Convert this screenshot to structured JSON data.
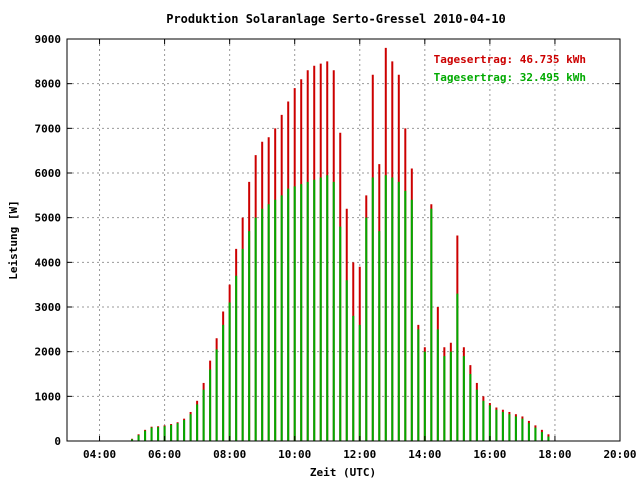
{
  "chart_data": {
    "type": "bar",
    "title": "Produktion Solaranlage Serto-Gressel 2010-04-10",
    "xlabel": "Zeit (UTC)",
    "ylabel": "Leistung [W]",
    "xlim": [
      3.0,
      20.0
    ],
    "ylim": [
      0,
      9000
    ],
    "x_ticks": [
      "04:00",
      "06:00",
      "08:00",
      "10:00",
      "12:00",
      "14:00",
      "16:00",
      "18:00",
      "20:00"
    ],
    "y_ticks": [
      "0",
      "1000",
      "2000",
      "3000",
      "4000",
      "5000",
      "6000",
      "7000",
      "8000",
      "9000"
    ],
    "grid": true,
    "legend_placement": "top-right",
    "annotations": [
      {
        "text": "Tagesertrag: 46.735 kWh",
        "color": "#cc0000"
      },
      {
        "text": "Tagesertrag: 32.495 kWh",
        "color": "#00aa00"
      }
    ],
    "series": [
      {
        "color": "#cc0000",
        "x": [
          5.0,
          5.2,
          5.4,
          5.6,
          5.8,
          6.0,
          6.2,
          6.4,
          6.6,
          6.8,
          7.0,
          7.2,
          7.4,
          7.6,
          7.8,
          8.0,
          8.2,
          8.4,
          8.6,
          8.8,
          9.0,
          9.2,
          9.4,
          9.6,
          9.8,
          10.0,
          10.2,
          10.4,
          10.6,
          10.8,
          11.0,
          11.2,
          11.4,
          11.6,
          11.8,
          12.0,
          12.2,
          12.4,
          12.6,
          12.8,
          13.0,
          13.2,
          13.4,
          13.6,
          13.8,
          14.0,
          14.2,
          14.4,
          14.6,
          14.8,
          15.0,
          15.2,
          15.4,
          15.6,
          15.8,
          16.0,
          16.2,
          16.4,
          16.6,
          16.8,
          17.0,
          17.2,
          17.4,
          17.6,
          17.8
        ],
        "values": [
          50,
          150,
          250,
          320,
          330,
          350,
          380,
          420,
          500,
          650,
          900,
          1300,
          1800,
          2300,
          2900,
          3500,
          4300,
          5000,
          5800,
          6400,
          6700,
          6800,
          7000,
          7300,
          7600,
          7900,
          8100,
          8300,
          8400,
          8450,
          8500,
          8300,
          6900,
          5200,
          4000,
          3900,
          5500,
          8200,
          6200,
          8800,
          8500,
          8200,
          7000,
          6100,
          2600,
          2100,
          5300,
          3000,
          2100,
          2200,
          4600,
          2100,
          1700,
          1300,
          1000,
          850,
          750,
          700,
          650,
          600,
          550,
          450,
          350,
          250,
          150
        ]
      },
      {
        "color": "#00aa00",
        "x": [
          5.0,
          5.2,
          5.4,
          5.6,
          5.8,
          6.0,
          6.2,
          6.4,
          6.6,
          6.8,
          7.0,
          7.2,
          7.4,
          7.6,
          7.8,
          8.0,
          8.2,
          8.4,
          8.6,
          8.8,
          9.0,
          9.2,
          9.4,
          9.6,
          9.8,
          10.0,
          10.2,
          10.4,
          10.6,
          10.8,
          11.0,
          11.2,
          11.4,
          11.6,
          11.8,
          12.0,
          12.2,
          12.4,
          12.6,
          12.8,
          13.0,
          13.2,
          13.4,
          13.6,
          13.8,
          14.0,
          14.2,
          14.4,
          14.6,
          14.8,
          15.0,
          15.2,
          15.4,
          15.6,
          15.8,
          16.0,
          16.2,
          16.4,
          16.6,
          16.8,
          17.0,
          17.2,
          17.4,
          17.6,
          17.8
        ],
        "values": [
          40,
          130,
          230,
          300,
          310,
          330,
          360,
          400,
          470,
          600,
          820,
          1150,
          1600,
          2050,
          2600,
          3100,
          3700,
          4300,
          4700,
          5000,
          5200,
          5300,
          5400,
          5500,
          5650,
          5700,
          5750,
          5800,
          5850,
          5900,
          5950,
          5800,
          4800,
          3600,
          2800,
          2600,
          5000,
          5900,
          4700,
          5950,
          5900,
          5800,
          5600,
          5400,
          2500,
          2000,
          5200,
          2500,
          1900,
          2000,
          3300,
          1900,
          1500,
          1150,
          900,
          800,
          700,
          650,
          600,
          550,
          500,
          400,
          300,
          200,
          100
        ]
      }
    ]
  }
}
